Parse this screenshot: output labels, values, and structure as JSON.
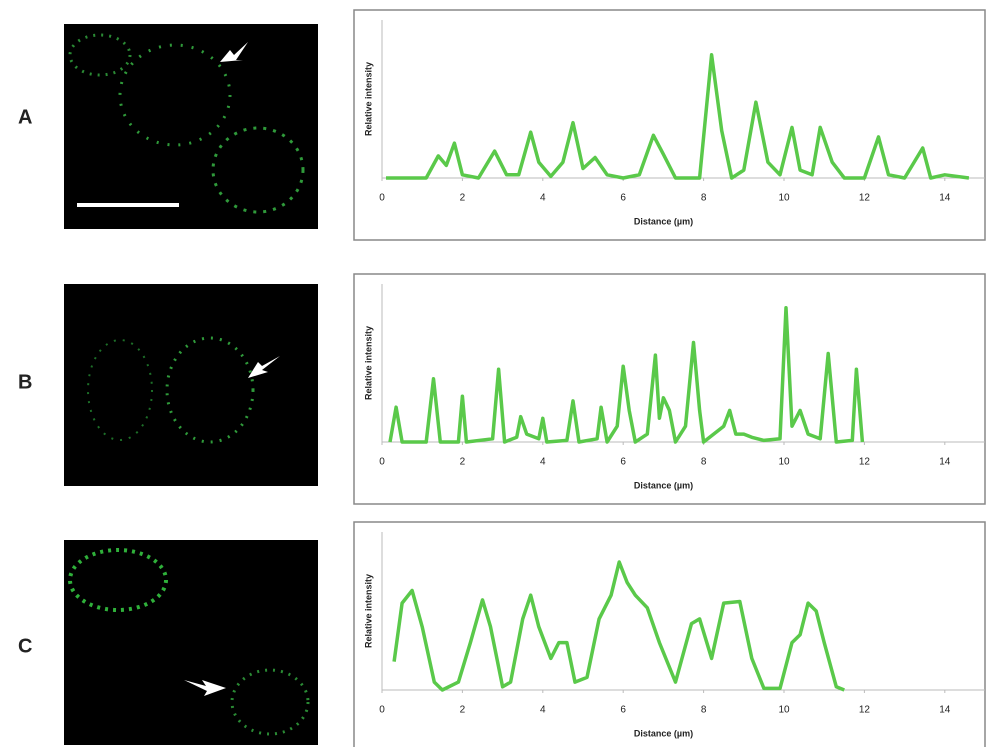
{
  "chart_data": [
    {
      "type": "line",
      "panel": "A",
      "xlabel": "Distance (µm)",
      "ylabel": "Relative intensity",
      "color": "#5ac94a",
      "xlim": [
        0,
        15
      ],
      "xticks": [
        0,
        2,
        4,
        6,
        8,
        10,
        12,
        14
      ],
      "ylim": [
        0,
        1
      ],
      "x": [
        0.1,
        1.1,
        1.4,
        1.6,
        1.8,
        2.0,
        2.4,
        2.8,
        3.1,
        3.4,
        3.7,
        3.9,
        4.2,
        4.5,
        4.75,
        5.0,
        5.3,
        5.6,
        6.0,
        6.4,
        6.75,
        7.0,
        7.3,
        7.9,
        8.2,
        8.45,
        8.7,
        9.0,
        9.3,
        9.6,
        9.9,
        10.2,
        10.4,
        10.7,
        10.9,
        11.2,
        11.5,
        12.0,
        12.35,
        12.6,
        13.0,
        13.45,
        13.65,
        14.0,
        14.6
      ],
      "values": [
        0,
        0,
        0.14,
        0.08,
        0.22,
        0.02,
        0,
        0.17,
        0.02,
        0.02,
        0.29,
        0.1,
        0.01,
        0.1,
        0.35,
        0.06,
        0.13,
        0.02,
        0,
        0.02,
        0.27,
        0.15,
        0,
        0,
        0.78,
        0.3,
        0,
        0.05,
        0.48,
        0.1,
        0.02,
        0.32,
        0.05,
        0.02,
        0.32,
        0.1,
        0,
        0,
        0.26,
        0.02,
        0,
        0.19,
        0,
        0.02,
        0
      ]
    },
    {
      "type": "line",
      "panel": "B",
      "xlabel": "Distance (µm)",
      "ylabel": "Relative intensity",
      "color": "#5ac94a",
      "xlim": [
        0,
        15
      ],
      "xticks": [
        0,
        2,
        4,
        6,
        8,
        10,
        12,
        14
      ],
      "ylim": [
        0,
        1
      ],
      "x": [
        0.2,
        0.35,
        0.5,
        1.1,
        1.28,
        1.45,
        1.9,
        2.0,
        2.1,
        2.75,
        2.9,
        3.05,
        3.35,
        3.45,
        3.6,
        3.9,
        4.0,
        4.1,
        4.6,
        4.75,
        4.9,
        5.35,
        5.45,
        5.6,
        5.85,
        6.0,
        6.15,
        6.3,
        6.6,
        6.8,
        6.9,
        7.0,
        7.15,
        7.3,
        7.55,
        7.75,
        7.9,
        8.0,
        8.5,
        8.65,
        8.8,
        9.0,
        9.2,
        9.5,
        9.9,
        10.05,
        10.2,
        10.4,
        10.6,
        10.9,
        11.1,
        11.3,
        11.7,
        11.8,
        11.95
      ],
      "values": [
        0,
        0.22,
        0,
        0,
        0.4,
        0,
        0,
        0.29,
        0,
        0.02,
        0.46,
        0,
        0.03,
        0.16,
        0.05,
        0.02,
        0.15,
        0,
        0.01,
        0.26,
        0,
        0.02,
        0.22,
        0,
        0.1,
        0.48,
        0.2,
        0,
        0.05,
        0.55,
        0.15,
        0.28,
        0.2,
        0,
        0.1,
        0.63,
        0.2,
        0,
        0.1,
        0.2,
        0.05,
        0.05,
        0.03,
        0.01,
        0.02,
        0.85,
        0.1,
        0.2,
        0.05,
        0.02,
        0.56,
        0,
        0.01,
        0.46,
        0
      ]
    },
    {
      "type": "line",
      "panel": "C",
      "xlabel": "Distance (µm)",
      "ylabel": "Relative intensity",
      "color": "#5ac94a",
      "xlim": [
        0,
        15
      ],
      "xticks": [
        0,
        2,
        4,
        6,
        8,
        10,
        12,
        14
      ],
      "ylim": [
        0,
        1
      ],
      "x": [
        0.3,
        0.5,
        0.75,
        1.0,
        1.3,
        1.5,
        1.9,
        2.2,
        2.5,
        2.7,
        3.0,
        3.2,
        3.5,
        3.7,
        3.9,
        4.2,
        4.4,
        4.6,
        4.8,
        5.1,
        5.4,
        5.7,
        5.9,
        6.1,
        6.3,
        6.6,
        6.9,
        7.3,
        7.7,
        7.9,
        8.2,
        8.5,
        8.9,
        9.2,
        9.5,
        9.9,
        10.2,
        10.4,
        10.6,
        10.8,
        11.0,
        11.3,
        11.5
      ],
      "values": [
        0.18,
        0.55,
        0.63,
        0.4,
        0.05,
        0,
        0.05,
        0.3,
        0.57,
        0.4,
        0.02,
        0.05,
        0.45,
        0.6,
        0.4,
        0.2,
        0.3,
        0.3,
        0.05,
        0.08,
        0.45,
        0.6,
        0.81,
        0.68,
        0.6,
        0.52,
        0.3,
        0.05,
        0.42,
        0.45,
        0.2,
        0.55,
        0.56,
        0.2,
        0.01,
        0.01,
        0.3,
        0.35,
        0.55,
        0.5,
        0.3,
        0.02,
        0
      ]
    }
  ]
}
